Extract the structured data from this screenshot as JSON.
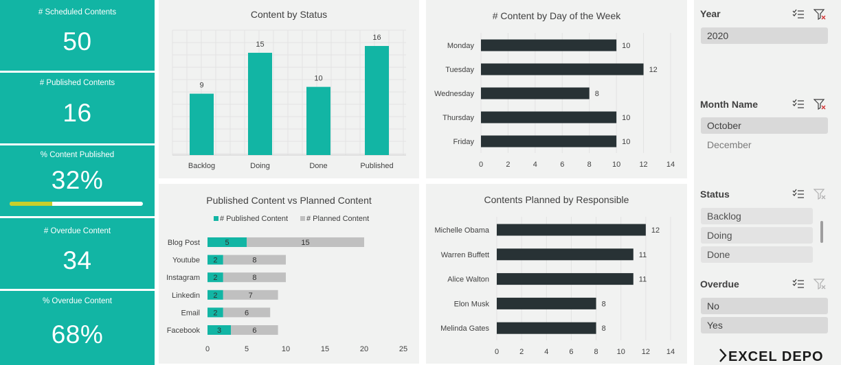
{
  "kpis": [
    {
      "label": "# Scheduled Contents",
      "value": "50"
    },
    {
      "label": "# Published Contents",
      "value": "16"
    },
    {
      "label": "% Content Published",
      "value": "32%",
      "progress": 0.32
    },
    {
      "label": "# Overdue Content",
      "value": "34"
    },
    {
      "label": "% Overdue Content",
      "value": "68%"
    }
  ],
  "charts": {
    "status": {
      "chart_data": {
        "type": "bar",
        "title": "Content by Status",
        "categories": [
          "Backlog",
          "Doing",
          "Done",
          "Published"
        ],
        "values": [
          9,
          15,
          10,
          16
        ],
        "ylim": [
          0,
          16
        ],
        "grid": true,
        "color": "#12B5A4"
      }
    },
    "day": {
      "chart_data": {
        "type": "bar",
        "orientation": "horizontal",
        "title": "# Content by Day of the Week",
        "categories": [
          "Monday",
          "Tuesday",
          "Wednesday",
          "Thursday",
          "Friday"
        ],
        "values": [
          10,
          12,
          8,
          10,
          10
        ],
        "xlim": [
          0,
          14
        ],
        "ticks": [
          "0",
          "2",
          "4",
          "6",
          "8",
          "10",
          "12",
          "14"
        ],
        "grid": true,
        "color": "#283235"
      }
    },
    "published_planned": {
      "chart_data": {
        "type": "bar",
        "orientation": "horizontal",
        "stacked": true,
        "title": "Published Content vs Planned Content",
        "categories": [
          "Blog Post",
          "Youtube",
          "Instagram",
          "Linkedin",
          "Email",
          "Facebook"
        ],
        "series": [
          {
            "name": "# Published Content",
            "values": [
              5,
              2,
              2,
              2,
              2,
              3
            ],
            "color": "#12B5A4"
          },
          {
            "name": "# Planned Content",
            "values": [
              15,
              8,
              8,
              7,
              6,
              6
            ],
            "color": "#C0C0C0"
          }
        ],
        "xlim": [
          0,
          25
        ],
        "ticks": [
          "0",
          "5",
          "10",
          "15",
          "20",
          "25"
        ],
        "legend": "top"
      }
    },
    "responsible": {
      "chart_data": {
        "type": "bar",
        "orientation": "horizontal",
        "title": "Contents Planned by Responsible",
        "categories": [
          "Michelle Obama",
          "Warren Buffett",
          "Alice Walton",
          "Elon Musk",
          "Melinda Gates"
        ],
        "values": [
          12,
          11,
          11,
          8,
          8
        ],
        "xlim": [
          0,
          14
        ],
        "ticks": [
          "0",
          "2",
          "4",
          "6",
          "8",
          "10",
          "12",
          "14"
        ],
        "grid": true,
        "color": "#283235"
      }
    }
  },
  "slicers": {
    "year": {
      "title": "Year",
      "items": [
        "2020"
      ]
    },
    "month": {
      "title": "Month Name",
      "items": [
        "October",
        "December"
      ]
    },
    "status": {
      "title": "Status",
      "items": [
        "Backlog",
        "Doing",
        "Done"
      ]
    },
    "overdue": {
      "title": "Overdue",
      "items": [
        "No",
        "Yes"
      ]
    }
  },
  "logo": {
    "text": "EXCEL DEPO"
  }
}
